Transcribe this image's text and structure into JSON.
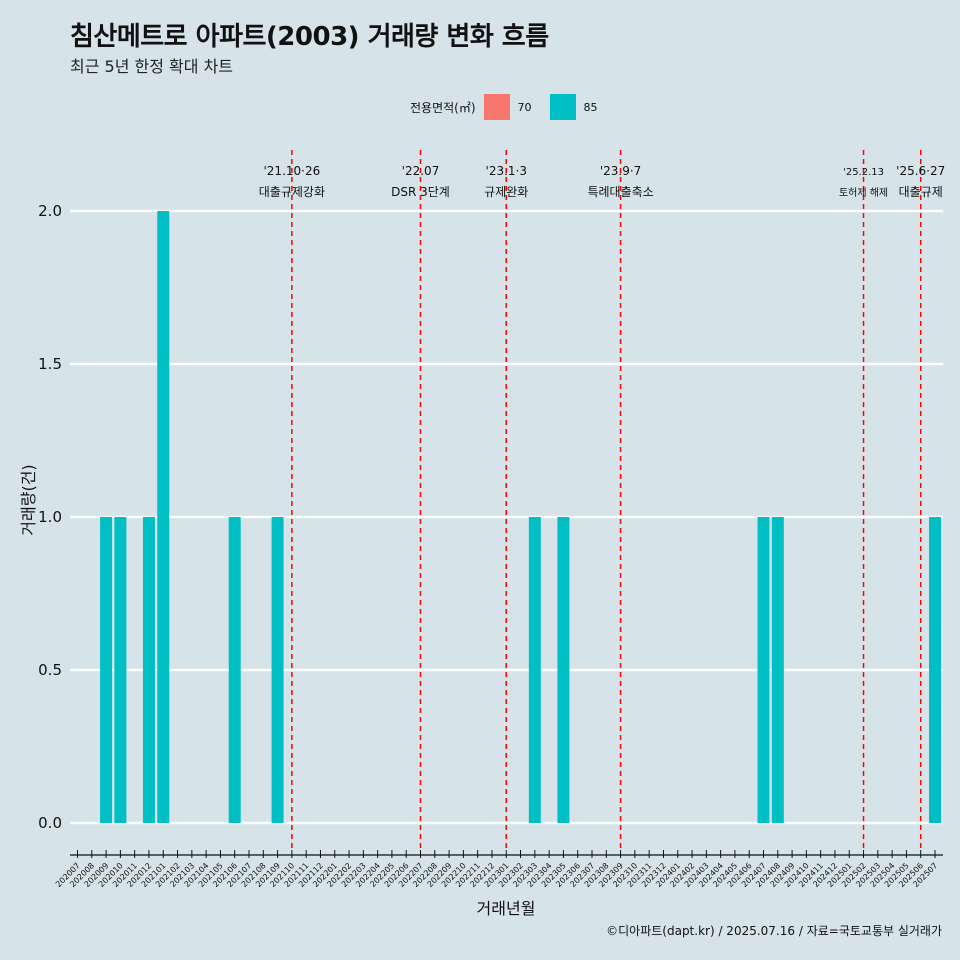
{
  "title": "침산메트로 아파트(2003) 거래량 변화 흐름",
  "subtitle": "최근 5년 한정 확대 차트",
  "caption": "©디아파트(dapt.kr) / 2025.07.16 / 자료=국토교통부 실거래가",
  "colors": {
    "background": "#d6e4ea",
    "series70": "#f8766d",
    "series85": "#00bfc4",
    "event_line": "#ff0000",
    "grid": "#ffffff"
  },
  "legend": {
    "title": "전용면적(㎡)",
    "items": [
      {
        "label": "70",
        "color": "#f8766d"
      },
      {
        "label": "85",
        "color": "#00bfc4"
      }
    ]
  },
  "chart_data": {
    "type": "bar",
    "xlabel": "거래년월",
    "ylabel": "거래량(건)",
    "ylim": [
      0,
      2
    ],
    "yticks": [
      "0.0",
      "0.5",
      "1.0",
      "1.5",
      "2.0"
    ],
    "grid": "horizontal",
    "categories": [
      "202007",
      "202008",
      "202009",
      "202010",
      "202011",
      "202012",
      "202101",
      "202102",
      "202103",
      "202104",
      "202105",
      "202106",
      "202107",
      "202108",
      "202109",
      "202110",
      "202111",
      "202112",
      "202201",
      "202202",
      "202203",
      "202204",
      "202205",
      "202206",
      "202207",
      "202208",
      "202209",
      "202210",
      "202211",
      "202212",
      "202301",
      "202302",
      "202303",
      "202304",
      "202305",
      "202306",
      "202307",
      "202308",
      "202309",
      "202310",
      "202311",
      "202312",
      "202401",
      "202402",
      "202403",
      "202404",
      "202405",
      "202406",
      "202407",
      "202408",
      "202409",
      "202410",
      "202411",
      "202412",
      "202501",
      "202502",
      "202503",
      "202504",
      "202505",
      "202506",
      "202507"
    ],
    "series": [
      {
        "name": "85",
        "values": [
          0,
          0,
          1,
          1,
          0,
          1,
          2,
          0,
          0,
          0,
          0,
          1,
          0,
          0,
          1,
          0,
          0,
          0,
          0,
          0,
          0,
          0,
          0,
          0,
          0,
          0,
          0,
          0,
          0,
          0,
          0,
          0,
          1,
          0,
          1,
          0,
          0,
          0,
          0,
          0,
          0,
          0,
          0,
          0,
          0,
          0,
          0,
          0,
          1,
          1,
          0,
          0,
          0,
          0,
          0,
          0,
          0,
          0,
          0,
          0,
          1
        ]
      }
    ],
    "annotations": [
      {
        "month": "202110",
        "date": "'21.10·26",
        "label": "대출규제강화",
        "small": false
      },
      {
        "month": "202207",
        "date": "'22.07",
        "label": "DSR 3단계",
        "small": false
      },
      {
        "month": "202301",
        "date": "'23.1·3",
        "label": "규제완화",
        "small": false
      },
      {
        "month": "202309",
        "date": "'23.9·7",
        "label": "특례대출축소",
        "small": false
      },
      {
        "month": "202502",
        "date": "'25.2.13",
        "label": "토허제 해제",
        "small": true
      },
      {
        "month": "202506",
        "date": "'25.6·27",
        "label": "대출규제",
        "small": false
      }
    ]
  }
}
